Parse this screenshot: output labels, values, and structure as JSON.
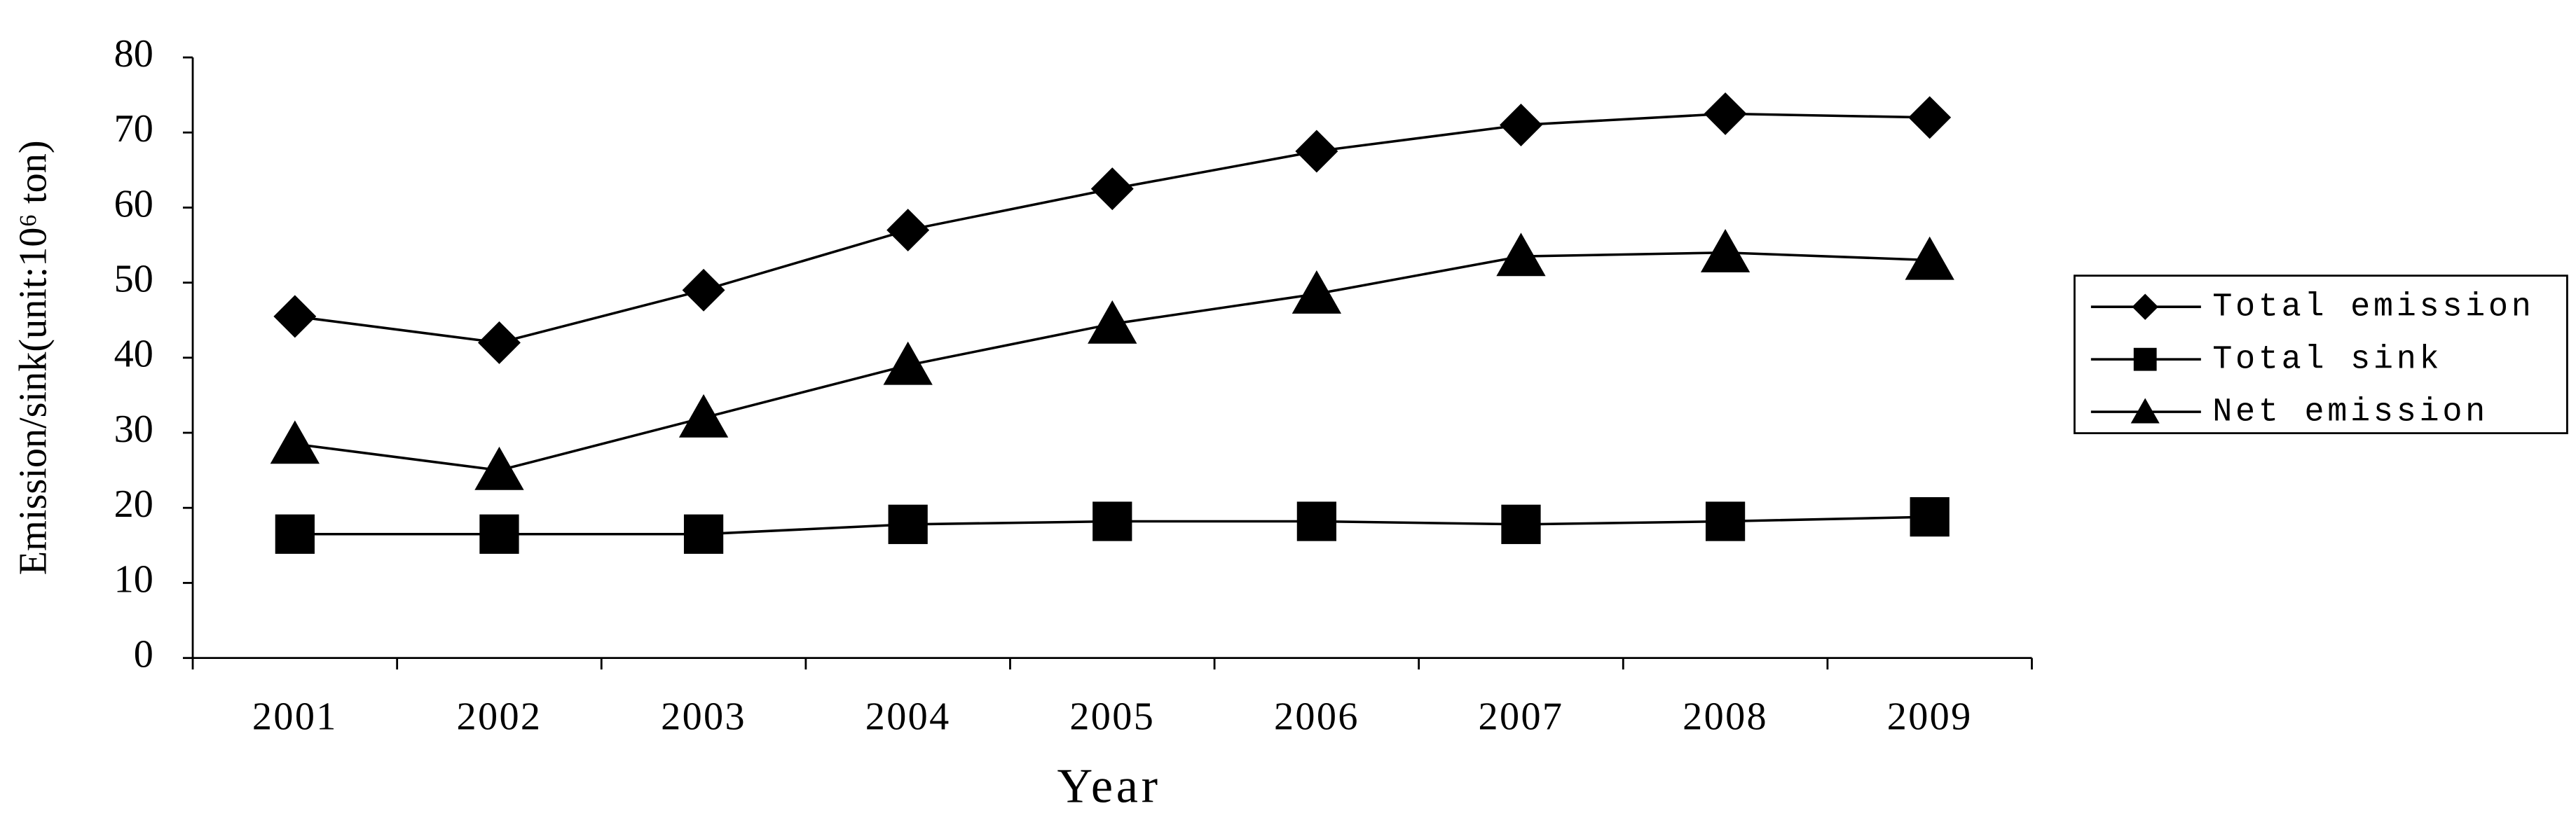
{
  "chart_data": {
    "type": "line",
    "x_label": "Year",
    "y_label": "Emission/sink(unit:10⁶ ton)",
    "categories": [
      "2001",
      "2002",
      "2003",
      "2004",
      "2005",
      "2006",
      "2007",
      "2008",
      "2009"
    ],
    "series": [
      {
        "name": "Total emission",
        "color": "#000000",
        "marker": "diamond",
        "values": [
          45.5,
          42,
          49,
          57,
          62.5,
          67.5,
          71,
          72.5,
          72
        ]
      },
      {
        "name": "Total sink",
        "color": "#000000",
        "marker": "square",
        "values": [
          16.5,
          16.5,
          16.5,
          17.8,
          18.2,
          18.2,
          17.8,
          18.2,
          18.8
        ]
      },
      {
        "name": "Net emission",
        "color": "#000000",
        "marker": "triangle",
        "values": [
          28.5,
          25,
          32,
          39,
          44.5,
          48.5,
          53.5,
          54,
          53
        ]
      }
    ],
    "ylim": [
      0,
      80
    ],
    "yticks": [
      0,
      10,
      20,
      30,
      40,
      50,
      60,
      70,
      80
    ],
    "grid": false,
    "legend": "right"
  }
}
